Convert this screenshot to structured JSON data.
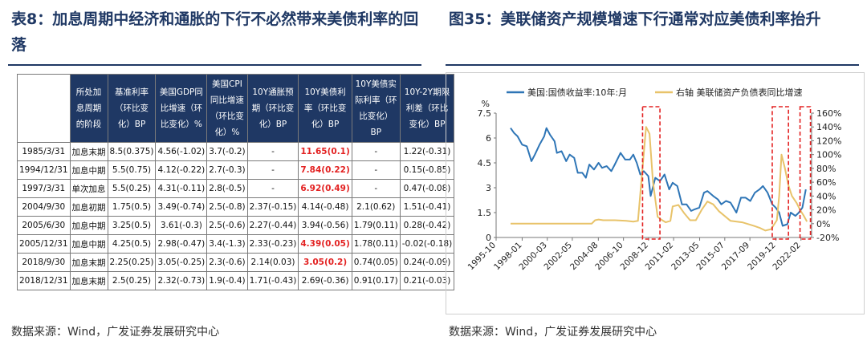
{
  "left": {
    "title": "表8：加息周期中经济和通胀的下行不必然带来美债利率的回落",
    "table": {
      "headers": [
        "",
        "所处加息周期的阶段",
        "基准利率（环比变化）BP",
        "美国GDP同比增速（环比变化）%",
        "美国CPI同比增速（环比变化）%",
        "10Y通胀预期（环比变化）BP",
        "10Y美债利率（环比变化）BP",
        "10Y美债实际利率（环比变化）BP",
        "10Y-2Y期限利差（环比变化）BP"
      ],
      "rows": [
        [
          "1985/3/31",
          "加息末期",
          "8.5(0.375)",
          "4.56(-1.02)",
          "3.7(-0.2)",
          "-",
          "11.65(0.1)",
          "-",
          "1.22(-0.31)"
        ],
        [
          "1994/12/31",
          "加息中期",
          "5.5(0.75)",
          "4.12(-0.22)",
          "2.7(-0.3)",
          "-",
          "7.84(0.22)",
          "-",
          "0.15(-0.85)"
        ],
        [
          "1997/3/31",
          "单次加息",
          "5.5(0.25)",
          "4.31(-0.11)",
          "2.8(-0.5)",
          "-",
          "6.92(0.49)",
          "-",
          "0.47(-0.08)"
        ],
        [
          "2004/9/30",
          "加息初期",
          "1.75(0.5)",
          "3.49(-0.74)",
          "2.5(-0.8)",
          "2.37(-0.15)",
          "4.14(-0.48)",
          "2.1(0.62)",
          "1.51(-0.41)"
        ],
        [
          "2005/6/30",
          "加息中期",
          "3.25(0.5)",
          "3.61(-0.3)",
          "2.5(-0.6)",
          "2.27(-0.44)",
          "3.94(-0.56)",
          "1.79(0.11)",
          "0.28(-0.42)"
        ],
        [
          "2005/12/31",
          "加息中期",
          "4.25(0.5)",
          "2.98(-0.47)",
          "3.4(-1.3)",
          "2.33(-0.23)",
          "4.39(0.05)",
          "1.78(0.11)",
          "-0.02(-0.18)"
        ],
        [
          "2018/9/30",
          "加息末期",
          "2.25(0.25)",
          "3.05(-0.25)",
          "2.3(-0.6)",
          "2.14(0.03)",
          "3.05(0.2)",
          "0.74(0.05)",
          "0.24(-0.09)"
        ],
        [
          "2018/12/31",
          "加息末期",
          "2.5(0.25)",
          "2.32(-0.73)",
          "1.9(-0.4)",
          "1.71(-0.43)",
          "2.69(-0.36)",
          "0.91(0.17)",
          "0.21(-0.03)"
        ]
      ],
      "highlighted_cells": [
        [
          0,
          6
        ],
        [
          1,
          6
        ],
        [
          2,
          6
        ],
        [
          5,
          6
        ],
        [
          6,
          6
        ]
      ]
    },
    "source": "数据来源：Wind，广发证券发展研究中心"
  },
  "right": {
    "title": "图35：美联储资产规模增速下行通常对应美债利率抬升",
    "source": "数据来源：Wind，广发证券发展研究中心",
    "chart_data": {
      "type": "line",
      "left_axis_unit": "%",
      "left_ylim": [
        0,
        7.5
      ],
      "left_ticks": [
        "0",
        "1.5",
        "3",
        "4.5",
        "6",
        "7.5"
      ],
      "right_ylim": [
        -20,
        160
      ],
      "right_ticks": [
        "-20%",
        "0%",
        "20%",
        "40%",
        "60%",
        "80%",
        "100%",
        "120%",
        "140%",
        "160%"
      ],
      "x_tick_labels": [
        "1995-10",
        "1998-01",
        "2000-03",
        "2002-05",
        "2004-08",
        "2006-10",
        "2008-12",
        "2011-02",
        "2013-05",
        "2015-07",
        "2017-09",
        "2019-12",
        "2022-02"
      ],
      "x_ticks_year": [
        1995.75,
        1998.0,
        2000.17,
        2002.33,
        2004.58,
        2006.75,
        2008.92,
        2011.08,
        2013.33,
        2015.5,
        2017.67,
        2019.92,
        2022.08
      ],
      "xlim": [
        1995.75,
        2023.0
      ],
      "series": [
        {
          "name": "美国:国债收益率:10年:月",
          "axis": "left",
          "color": "#2e75b6",
          "x": [
            1997.0,
            1997.3,
            1997.6,
            1998.0,
            1998.4,
            1998.8,
            1999.1,
            1999.5,
            1999.9,
            2000.1,
            2000.4,
            2000.8,
            2001.0,
            2001.4,
            2001.8,
            2002.1,
            2002.5,
            2002.8,
            2003.2,
            2003.5,
            2003.8,
            2004.2,
            2004.6,
            2004.9,
            2005.3,
            2005.7,
            2006.0,
            2006.5,
            2006.9,
            2007.3,
            2007.6,
            2007.9,
            2008.2,
            2008.5,
            2008.9,
            2009.1,
            2009.5,
            2009.9,
            2010.3,
            2010.7,
            2011.0,
            2011.4,
            2011.8,
            2012.2,
            2012.6,
            2012.9,
            2013.3,
            2013.7,
            2014.0,
            2014.5,
            2014.9,
            2015.2,
            2015.6,
            2016.0,
            2016.5,
            2016.9,
            2017.3,
            2017.7,
            2018.1,
            2018.5,
            2018.8,
            2019.2,
            2019.6,
            2019.9,
            2020.2,
            2020.5,
            2020.9,
            2021.2,
            2021.6,
            2021.9,
            2022.2,
            2022.5
          ],
          "y": [
            6.6,
            6.3,
            6.1,
            5.6,
            5.5,
            4.6,
            5.0,
            5.6,
            6.1,
            6.6,
            6.2,
            5.8,
            5.1,
            5.2,
            4.6,
            5.0,
            4.8,
            3.9,
            3.9,
            3.6,
            4.4,
            4.1,
            4.5,
            4.2,
            4.3,
            4.0,
            4.4,
            5.1,
            4.7,
            4.7,
            5.0,
            4.5,
            3.8,
            4.0,
            3.7,
            2.5,
            3.6,
            3.4,
            3.8,
            2.9,
            3.3,
            3.1,
            2.0,
            2.0,
            1.6,
            1.7,
            1.8,
            2.7,
            2.8,
            2.5,
            2.3,
            2.0,
            2.2,
            2.1,
            1.5,
            2.4,
            2.4,
            2.2,
            2.7,
            2.9,
            3.1,
            2.7,
            2.0,
            1.8,
            1.5,
            0.7,
            0.8,
            1.5,
            1.3,
            1.5,
            1.8,
            2.9
          ]
        },
        {
          "name": "右轴 美联储资产负债表同比增速",
          "axis": "right",
          "color": "#e8c36a",
          "x": [
            1997.0,
            1998.0,
            1999.0,
            2000.0,
            2001.0,
            2002.0,
            2003.0,
            2004.0,
            2004.3,
            2004.6,
            2005.0,
            2006.0,
            2007.0,
            2007.6,
            2008.0,
            2008.7,
            2009.0,
            2009.3,
            2009.7,
            2010.0,
            2010.4,
            2010.8,
            2011.0,
            2011.5,
            2012.0,
            2012.5,
            2013.0,
            2013.5,
            2014.0,
            2014.5,
            2015.0,
            2016.0,
            2017.0,
            2018.0,
            2018.5,
            2019.0,
            2019.5,
            2020.0,
            2020.2,
            2020.4,
            2020.7,
            2021.0,
            2021.3,
            2021.7,
            2022.0,
            2022.3,
            2022.6
          ],
          "y": [
            0,
            0,
            0,
            0,
            0,
            0,
            0,
            0,
            5,
            6,
            5,
            5,
            4,
            3,
            4,
            140,
            130,
            60,
            10,
            6,
            2,
            4,
            25,
            27,
            15,
            5,
            5,
            20,
            32,
            28,
            18,
            4,
            2,
            -3,
            -6,
            -10,
            -8,
            5,
            40,
            100,
            80,
            55,
            40,
            30,
            20,
            12,
            3
          ]
        }
      ],
      "highlight_boxes_year": [
        [
          2008.4,
          2009.9
        ],
        [
          2019.6,
          2021.0
        ],
        [
          2022.0,
          2022.9
        ]
      ]
    }
  }
}
